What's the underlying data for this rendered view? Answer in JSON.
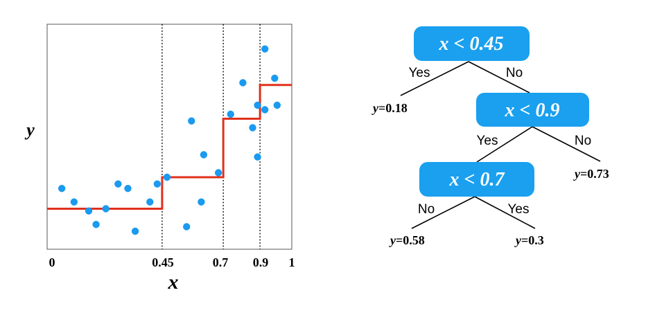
{
  "colors": {
    "points": "#1a9af0",
    "step": "#e0301c",
    "node_fill": "#1aa0ef",
    "node_text": "#ffffff",
    "axis": "#000000"
  },
  "chart_data": {
    "type": "scatter",
    "xlabel": "x",
    "ylabel": "y",
    "xlim": [
      0,
      1
    ],
    "ylim": [
      0,
      1
    ],
    "x_ticks": [
      "0",
      "0.45",
      "0.7",
      "0.9",
      "1"
    ],
    "split_lines": [
      0.47,
      0.72,
      0.87
    ],
    "points": [
      {
        "x": 0.06,
        "y": 0.27
      },
      {
        "x": 0.11,
        "y": 0.21
      },
      {
        "x": 0.17,
        "y": 0.17
      },
      {
        "x": 0.2,
        "y": 0.11
      },
      {
        "x": 0.24,
        "y": 0.18
      },
      {
        "x": 0.29,
        "y": 0.29
      },
      {
        "x": 0.33,
        "y": 0.27
      },
      {
        "x": 0.36,
        "y": 0.08
      },
      {
        "x": 0.42,
        "y": 0.21
      },
      {
        "x": 0.45,
        "y": 0.29
      },
      {
        "x": 0.49,
        "y": 0.32
      },
      {
        "x": 0.57,
        "y": 0.1
      },
      {
        "x": 0.59,
        "y": 0.57
      },
      {
        "x": 0.63,
        "y": 0.21
      },
      {
        "x": 0.64,
        "y": 0.42
      },
      {
        "x": 0.7,
        "y": 0.34
      },
      {
        "x": 0.75,
        "y": 0.6
      },
      {
        "x": 0.8,
        "y": 0.74
      },
      {
        "x": 0.84,
        "y": 0.54
      },
      {
        "x": 0.86,
        "y": 0.41
      },
      {
        "x": 0.86,
        "y": 0.64
      },
      {
        "x": 0.89,
        "y": 0.62
      },
      {
        "x": 0.89,
        "y": 0.89
      },
      {
        "x": 0.93,
        "y": 0.76
      },
      {
        "x": 0.94,
        "y": 0.64
      }
    ],
    "step_function": [
      {
        "x_from": 0.0,
        "x_to": 0.47,
        "y": 0.18
      },
      {
        "x_from": 0.47,
        "x_to": 0.72,
        "y": 0.32
      },
      {
        "x_from": 0.72,
        "x_to": 0.87,
        "y": 0.58
      },
      {
        "x_from": 0.87,
        "x_to": 1.0,
        "y": 0.73
      }
    ]
  },
  "tree": {
    "root": {
      "label": "x < 0.45",
      "yes_label": "Yes",
      "no_label": "No"
    },
    "leaf_root_yes": {
      "var": "y",
      "value": "=0.18"
    },
    "node_09": {
      "label": "x < 0.9",
      "yes_label": "Yes",
      "no_label": "No"
    },
    "leaf_09_no": {
      "var": "y",
      "value": "=0.73"
    },
    "node_07": {
      "label": "x < 0.7",
      "yes_label": "Yes",
      "no_label": "No"
    },
    "leaf_07_no": {
      "var": "y",
      "value": "=0.58"
    },
    "leaf_07_yes": {
      "var": "y",
      "value": "=0.3"
    }
  }
}
